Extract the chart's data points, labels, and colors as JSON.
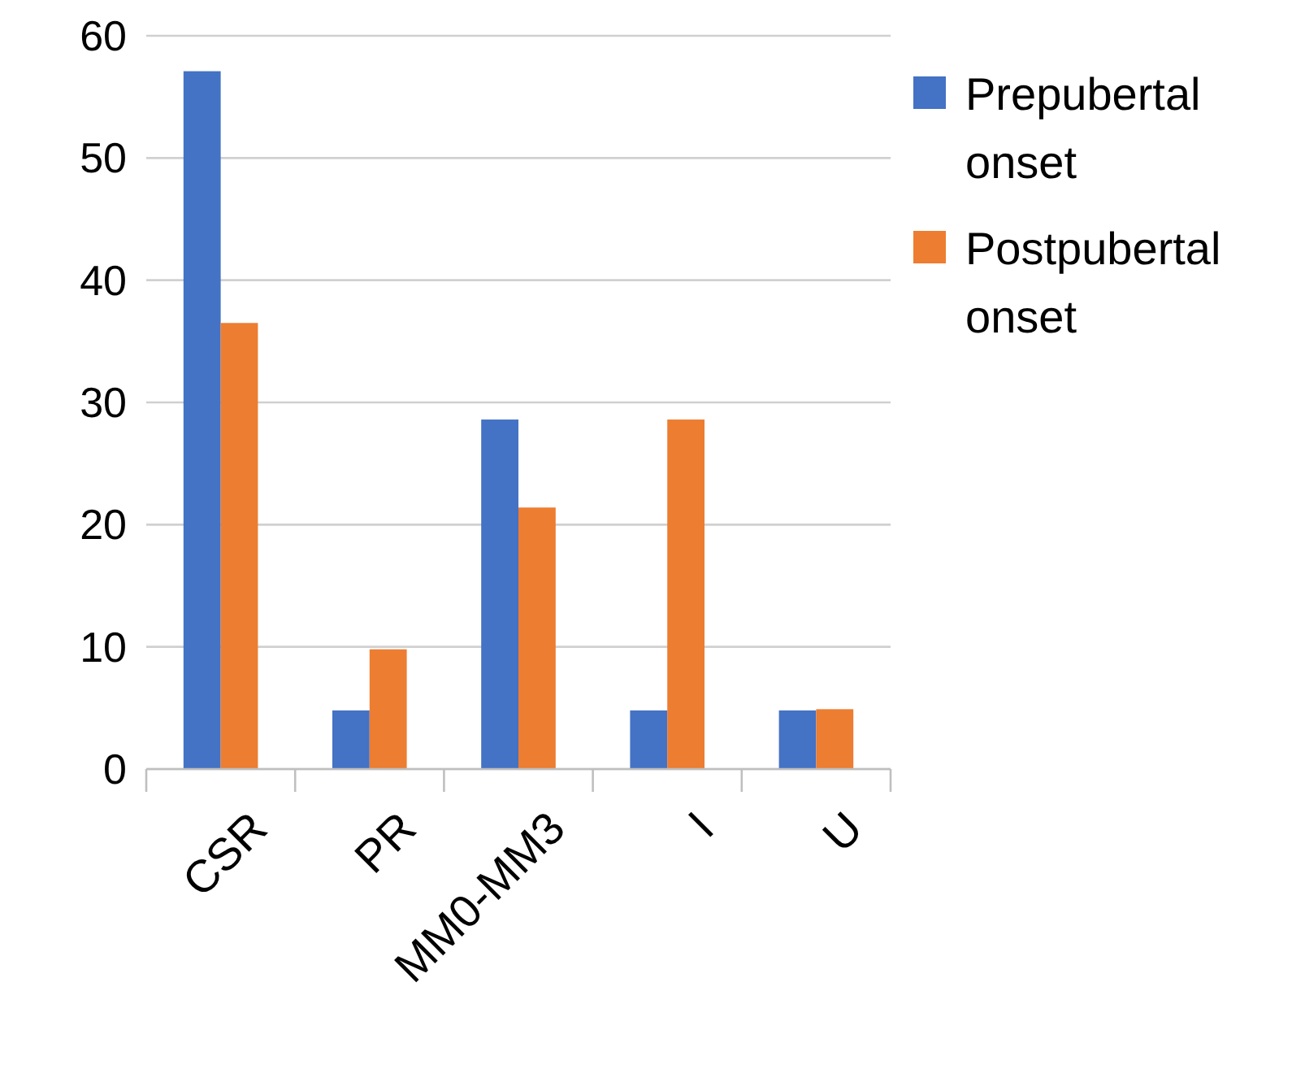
{
  "chart_data": {
    "type": "bar",
    "categories": [
      "CSR",
      "PR",
      "MM0-MM3",
      "I",
      "U"
    ],
    "series": [
      {
        "name": "Prepubertal onset",
        "color": "#4472c4",
        "values": [
          57.1,
          4.8,
          28.6,
          4.8,
          4.8
        ]
      },
      {
        "name": "Postpubertal onset",
        "color": "#ed7d31",
        "values": [
          36.5,
          9.8,
          21.4,
          28.6,
          4.9
        ]
      }
    ],
    "ylim": [
      0,
      60
    ],
    "yticks": [
      0,
      10,
      20,
      30,
      40,
      50,
      60
    ],
    "grid": "y",
    "legend": "right"
  }
}
